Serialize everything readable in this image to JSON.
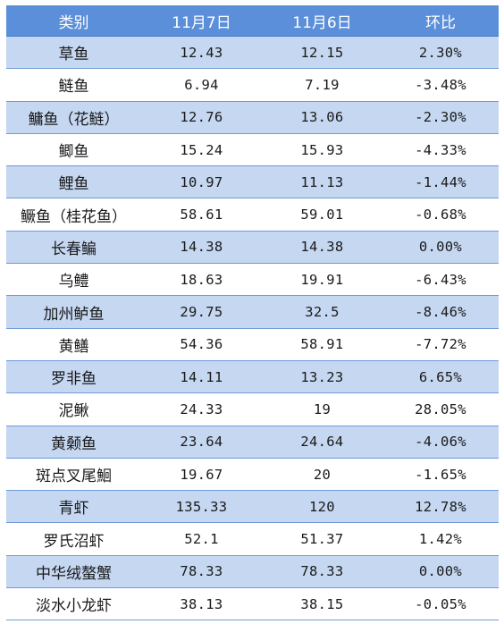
{
  "table": {
    "headers": [
      "类别",
      "11月7日",
      "11月6日",
      "环比"
    ],
    "rows": [
      [
        "草鱼",
        "12.43",
        "12.15",
        "2.30%"
      ],
      [
        "鲢鱼",
        "6.94",
        "7.19",
        "-3.48%"
      ],
      [
        "鳙鱼（花鲢）",
        "12.76",
        "13.06",
        "-2.30%"
      ],
      [
        "鲫鱼",
        "15.24",
        "15.93",
        "-4.33%"
      ],
      [
        "鲤鱼",
        "10.97",
        "11.13",
        "-1.44%"
      ],
      [
        "鳜鱼（桂花鱼）",
        "58.61",
        "59.01",
        "-0.68%"
      ],
      [
        "长春鳊",
        "14.38",
        "14.38",
        "0.00%"
      ],
      [
        "乌鳢",
        "18.63",
        "19.91",
        "-6.43%"
      ],
      [
        "加州鲈鱼",
        "29.75",
        "32.5",
        "-8.46%"
      ],
      [
        "黄鳝",
        "54.36",
        "58.91",
        "-7.72%"
      ],
      [
        "罗非鱼",
        "14.11",
        "13.23",
        "6.65%"
      ],
      [
        "泥鳅",
        "24.33",
        "19",
        "28.05%"
      ],
      [
        "黄颡鱼",
        "23.64",
        "24.64",
        "-4.06%"
      ],
      [
        "斑点叉尾鮰",
        "19.67",
        "20",
        "-1.65%"
      ],
      [
        "青虾",
        "135.33",
        "120",
        "12.78%"
      ],
      [
        "罗氏沼虾",
        "52.1",
        "51.37",
        "1.42%"
      ],
      [
        "中华绒螯蟹",
        "78.33",
        "78.33",
        "0.00%"
      ],
      [
        "淡水小龙虾",
        "38.13",
        "38.15",
        "-0.05%"
      ]
    ]
  },
  "colors": {
    "header_bg": "#5b8fd9",
    "shade_row_bg": "#c5d7f1",
    "plain_row_bg": "#ffffff",
    "rule": "#6f9ad8"
  }
}
